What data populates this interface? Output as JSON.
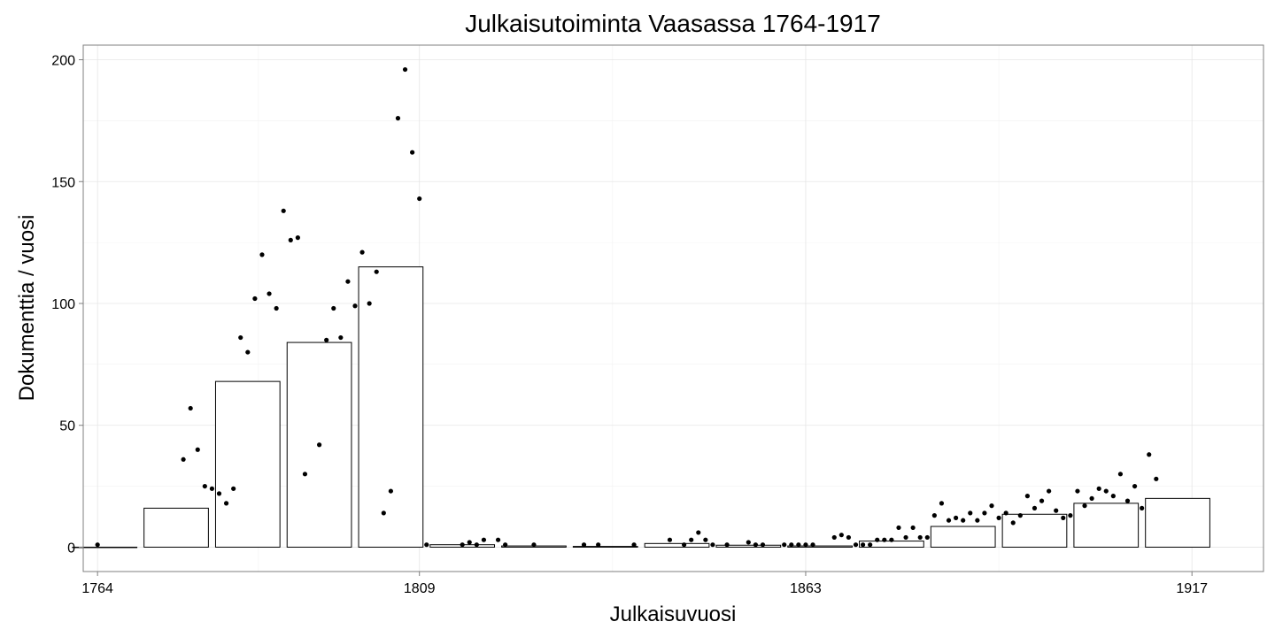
{
  "chart_data": {
    "type": "bar",
    "title": "Julkaisutoiminta Vaasassa 1764-1917",
    "xlabel": "Julkaisuvuosi",
    "ylabel": "Dokumenttia / vuosi",
    "xlim": [
      1762,
      1927
    ],
    "ylim": [
      -10,
      206
    ],
    "x_ticks": [
      1764,
      1809,
      1863,
      1917
    ],
    "y_ticks": [
      0,
      50,
      100,
      150,
      200
    ],
    "grid": true,
    "legend": "none",
    "bar_width_years": 9,
    "bars": [
      {
        "x": 1765,
        "value": 0
      },
      {
        "x": 1775,
        "value": 16
      },
      {
        "x": 1785,
        "value": 68
      },
      {
        "x": 1795,
        "value": 84
      },
      {
        "x": 1805,
        "value": 115
      },
      {
        "x": 1815,
        "value": 1
      },
      {
        "x": 1825,
        "value": 0.5
      },
      {
        "x": 1835,
        "value": 0.3
      },
      {
        "x": 1845,
        "value": 1.5
      },
      {
        "x": 1855,
        "value": 0.8
      },
      {
        "x": 1865,
        "value": 0.5
      },
      {
        "x": 1875,
        "value": 2.5
      },
      {
        "x": 1885,
        "value": 8.5
      },
      {
        "x": 1895,
        "value": 13.5
      },
      {
        "x": 1905,
        "value": 18
      },
      {
        "x": 1915,
        "value": 20
      }
    ],
    "points": [
      [
        1764,
        1
      ],
      [
        1776,
        36
      ],
      [
        1777,
        57
      ],
      [
        1778,
        40
      ],
      [
        1779,
        25
      ],
      [
        1780,
        24
      ],
      [
        1781,
        22
      ],
      [
        1782,
        18
      ],
      [
        1783,
        24
      ],
      [
        1784,
        86
      ],
      [
        1785,
        80
      ],
      [
        1786,
        102
      ],
      [
        1787,
        120
      ],
      [
        1788,
        104
      ],
      [
        1789,
        98
      ],
      [
        1790,
        138
      ],
      [
        1791,
        126
      ],
      [
        1792,
        127
      ],
      [
        1793,
        30
      ],
      [
        1795,
        42
      ],
      [
        1796,
        85
      ],
      [
        1797,
        98
      ],
      [
        1798,
        86
      ],
      [
        1799,
        109
      ],
      [
        1800,
        99
      ],
      [
        1801,
        121
      ],
      [
        1802,
        100
      ],
      [
        1803,
        113
      ],
      [
        1804,
        14
      ],
      [
        1805,
        23
      ],
      [
        1806,
        176
      ],
      [
        1807,
        196
      ],
      [
        1808,
        162
      ],
      [
        1809,
        143
      ],
      [
        1810,
        1
      ],
      [
        1815,
        1
      ],
      [
        1816,
        2
      ],
      [
        1817,
        1
      ],
      [
        1818,
        3
      ],
      [
        1820,
        3
      ],
      [
        1821,
        1
      ],
      [
        1825,
        1
      ],
      [
        1832,
        1
      ],
      [
        1834,
        1
      ],
      [
        1839,
        1
      ],
      [
        1844,
        3
      ],
      [
        1846,
        1
      ],
      [
        1847,
        3
      ],
      [
        1848,
        6
      ],
      [
        1849,
        3
      ],
      [
        1850,
        1
      ],
      [
        1852,
        1
      ],
      [
        1855,
        2
      ],
      [
        1856,
        1
      ],
      [
        1857,
        1
      ],
      [
        1860,
        1
      ],
      [
        1861,
        1
      ],
      [
        1862,
        1
      ],
      [
        1863,
        1
      ],
      [
        1864,
        1
      ],
      [
        1867,
        4
      ],
      [
        1868,
        5
      ],
      [
        1869,
        4
      ],
      [
        1870,
        1
      ],
      [
        1871,
        1
      ],
      [
        1872,
        1
      ],
      [
        1873,
        3
      ],
      [
        1874,
        3
      ],
      [
        1875,
        3
      ],
      [
        1876,
        8
      ],
      [
        1877,
        4
      ],
      [
        1878,
        8
      ],
      [
        1879,
        4
      ],
      [
        1880,
        4
      ],
      [
        1881,
        13
      ],
      [
        1882,
        18
      ],
      [
        1883,
        11
      ],
      [
        1884,
        12
      ],
      [
        1885,
        11
      ],
      [
        1886,
        14
      ],
      [
        1887,
        11
      ],
      [
        1888,
        14
      ],
      [
        1889,
        17
      ],
      [
        1890,
        12
      ],
      [
        1891,
        14
      ],
      [
        1892,
        10
      ],
      [
        1893,
        13
      ],
      [
        1894,
        21
      ],
      [
        1895,
        16
      ],
      [
        1896,
        19
      ],
      [
        1897,
        23
      ],
      [
        1898,
        15
      ],
      [
        1899,
        12
      ],
      [
        1900,
        13
      ],
      [
        1901,
        23
      ],
      [
        1902,
        17
      ],
      [
        1903,
        20
      ],
      [
        1904,
        24
      ],
      [
        1905,
        23
      ],
      [
        1906,
        21
      ],
      [
        1907,
        30
      ],
      [
        1908,
        19
      ],
      [
        1909,
        25
      ],
      [
        1910,
        16
      ],
      [
        1911,
        38
      ],
      [
        1912,
        28
      ]
    ]
  }
}
